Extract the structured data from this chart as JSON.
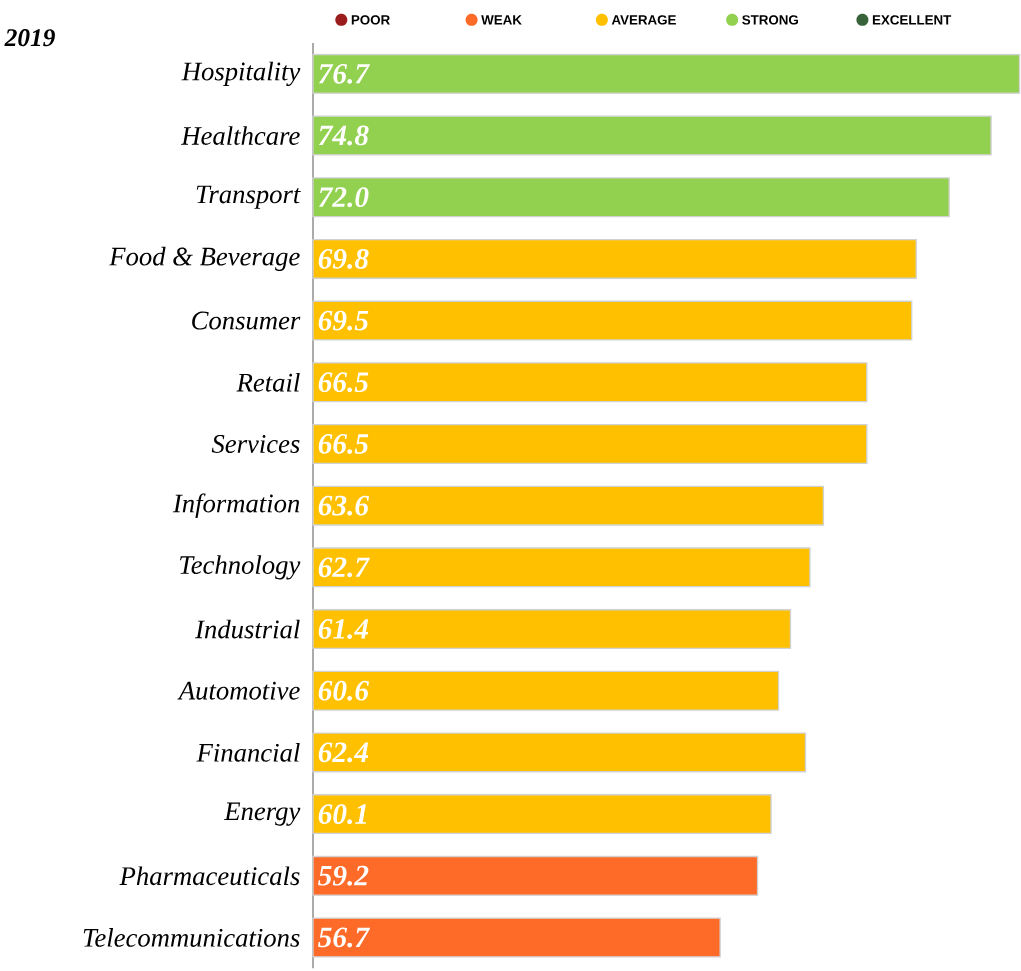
{
  "chart_data": {
    "type": "bar",
    "orientation": "horizontal",
    "title": "2019",
    "categories": [
      "Hospitality",
      "Healthcare",
      "Transport",
      "Food & Beverage",
      "Consumer",
      "Retail",
      "Services",
      "Information",
      "Technology",
      "Industrial",
      "Automotive",
      "Financial",
      "Energy",
      "Pharmaceuticals",
      "Telecommunications"
    ],
    "series": [
      {
        "name": "POOR",
        "color": "#9b1c1c",
        "values": [
          null,
          null,
          null,
          null,
          null,
          null,
          null,
          null,
          null,
          null,
          null,
          null,
          null,
          null,
          null
        ],
        "value_labels": [
          null,
          null,
          null,
          null,
          null,
          null,
          null,
          null,
          null,
          null,
          null,
          null,
          null,
          null,
          null
        ]
      },
      {
        "name": "WEAK",
        "color": "#fe6a28",
        "values": [
          null,
          null,
          null,
          null,
          null,
          null,
          null,
          null,
          null,
          null,
          null,
          null,
          null,
          59.2,
          56.7
        ],
        "value_labels": [
          null,
          null,
          null,
          null,
          null,
          null,
          null,
          null,
          null,
          null,
          null,
          null,
          null,
          "59.2",
          "56.7"
        ]
      },
      {
        "name": "AVERAGE",
        "color": "#ffc000",
        "values": [
          null,
          null,
          null,
          69.8,
          69.5,
          66.5,
          66.5,
          63.6,
          62.7,
          61.4,
          60.6,
          62.4,
          60.1,
          null,
          null
        ],
        "value_labels": [
          null,
          null,
          null,
          "69.8",
          "69.5",
          "66.5",
          "66.5",
          "63.6",
          "62.7",
          "61.4",
          "60.6",
          "62.4",
          "60.1",
          null,
          null
        ]
      },
      {
        "name": "STRONG",
        "color": "#92d050",
        "values": [
          76.7,
          74.8,
          72.0,
          null,
          null,
          null,
          null,
          null,
          null,
          null,
          null,
          null,
          null,
          null,
          null
        ],
        "value_labels": [
          "76.7",
          "74.8",
          "72.0",
          null,
          null,
          null,
          null,
          null,
          null,
          null,
          null,
          null,
          null,
          null,
          null
        ]
      },
      {
        "name": "EXCELLENT",
        "color": "#38633a",
        "values": [
          null,
          null,
          null,
          null,
          null,
          null,
          null,
          null,
          null,
          null,
          null,
          null,
          null,
          null,
          null
        ],
        "value_labels": [
          null,
          null,
          null,
          null,
          null,
          null,
          null,
          null,
          null,
          null,
          null,
          null,
          null,
          null,
          null
        ]
      }
    ],
    "xlim": [
      29.5,
      76.8
    ],
    "tick_labels": "y",
    "legend": "top"
  }
}
